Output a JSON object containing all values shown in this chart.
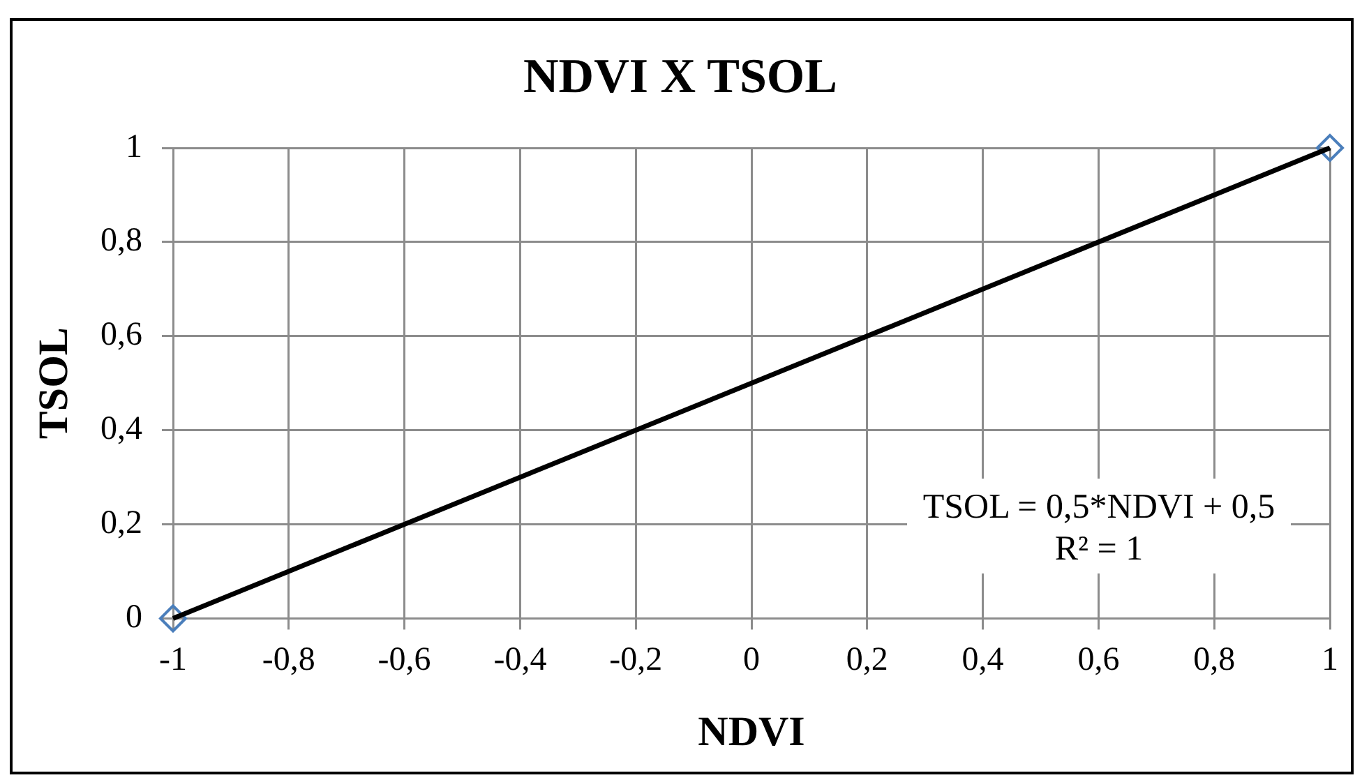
{
  "chart_data": {
    "type": "scatter",
    "title": "NDVI X TSOL",
    "xlabel": "NDVI",
    "ylabel": "TSOL",
    "x": [
      -1,
      1
    ],
    "series": [
      {
        "type": "scatter",
        "values": [
          0,
          1
        ],
        "color": "#4a7ebb",
        "marker": "diamond"
      },
      {
        "type": "line",
        "values": [
          0,
          1
        ],
        "color": "#000000",
        "marker": "none"
      }
    ],
    "xlim": [
      -1,
      1
    ],
    "xticks": [
      {
        "value": -1,
        "label": "-1"
      },
      {
        "value": -0.8,
        "label": "-0,8"
      },
      {
        "value": -0.6,
        "label": "-0,6"
      },
      {
        "value": -0.4,
        "label": "-0,4"
      },
      {
        "value": -0.2,
        "label": "-0,2"
      },
      0,
      {
        "value": 0.2,
        "label": "0,2"
      },
      {
        "value": 0.4,
        "label": "0,4"
      },
      {
        "value": 0.6,
        "label": "0,6"
      },
      {
        "value": 0.8,
        "label": "0,8"
      },
      1
    ],
    "ylim": [
      0,
      1
    ],
    "yticks": [
      0,
      {
        "value": 0.2,
        "label": "0,2"
      },
      {
        "value": 0.4,
        "label": "0,4"
      },
      {
        "value": 0.6,
        "label": "0,6"
      },
      {
        "value": 0.8,
        "label": "0,8"
      },
      1
    ],
    "grid": true,
    "annotations": [
      "TSOL = 0,5*NDVI + 0,5",
      "R² = 1"
    ]
  }
}
